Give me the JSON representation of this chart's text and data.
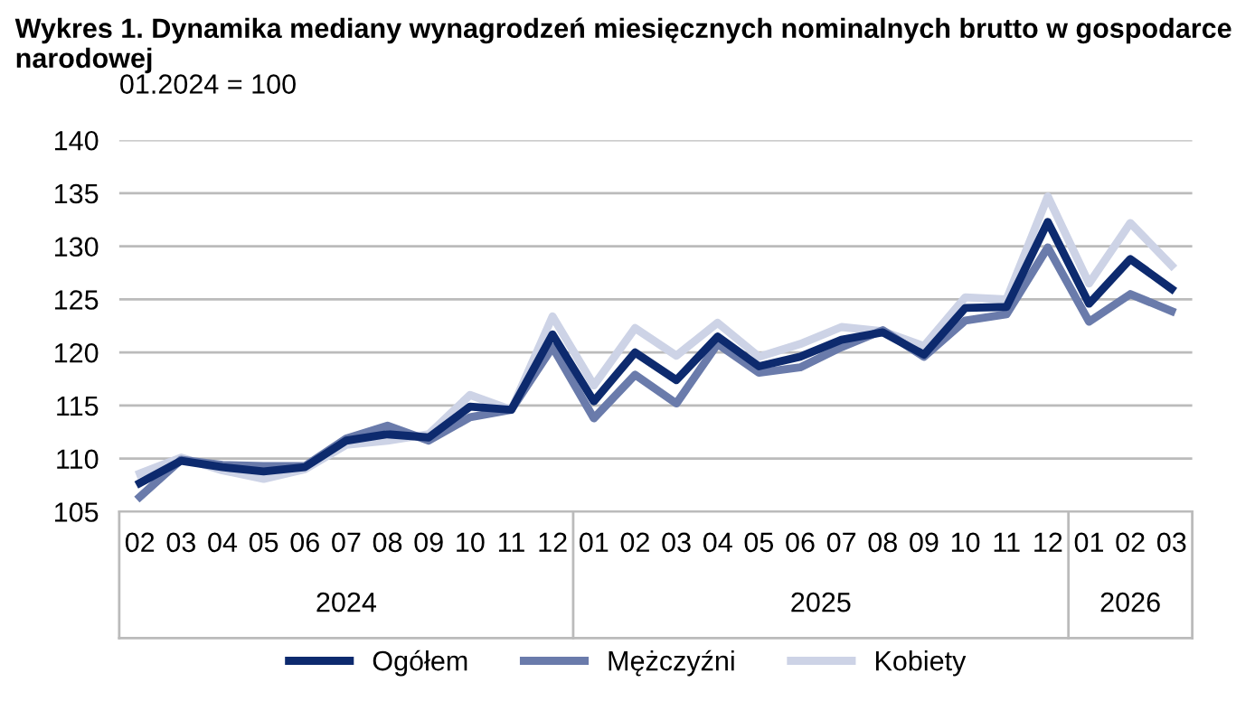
{
  "chart_data": {
    "type": "line",
    "title": "Wykres 1. Dynamika mediany wynagrodzeń miesięcznych nominalnych brutto w gospodarce narodowej",
    "subtitle": "01.2024 = 100",
    "categories": [
      "02",
      "03",
      "04",
      "05",
      "06",
      "07",
      "08",
      "09",
      "10",
      "11",
      "12",
      "01",
      "02",
      "03",
      "04",
      "05",
      "06",
      "07",
      "08",
      "09",
      "10",
      "11",
      "12",
      "01",
      "02",
      "03"
    ],
    "annotations": [
      "2024",
      "2025",
      "2026"
    ],
    "series": [
      {
        "name": "Ogółem",
        "color": "#0d2a6e",
        "values": [
          107.7,
          109.8,
          109.2,
          108.8,
          109.2,
          111.7,
          112.3,
          112.0,
          114.9,
          114.6,
          121.7,
          115.4,
          120.0,
          117.4,
          121.5,
          118.7,
          119.6,
          121.2,
          121.9,
          119.8,
          124.2,
          124.3,
          132.3,
          124.6,
          128.8,
          126.0
        ]
      },
      {
        "name": "Mężczyźni",
        "color": "#6a7bab",
        "values": [
          106.4,
          109.9,
          109.4,
          109.3,
          109.3,
          111.9,
          113.1,
          111.7,
          113.9,
          114.6,
          120.5,
          113.8,
          117.9,
          115.2,
          120.8,
          118.1,
          118.6,
          120.5,
          122.1,
          119.6,
          123.0,
          123.6,
          129.9,
          122.9,
          125.5,
          123.9
        ]
      },
      {
        "name": "Kobiety",
        "color": "#cdd3e6",
        "values": [
          108.6,
          110.1,
          108.9,
          108.1,
          109.0,
          111.3,
          111.7,
          112.3,
          116.0,
          114.6,
          123.4,
          116.9,
          122.3,
          119.7,
          122.8,
          119.6,
          120.8,
          122.4,
          122.0,
          120.6,
          125.2,
          125.0,
          134.7,
          126.5,
          132.2,
          128.2
        ]
      }
    ],
    "ylim": [
      105,
      140
    ],
    "yticks": [
      105,
      110,
      115,
      120,
      125,
      130,
      135,
      140
    ],
    "grid": "y",
    "legend": "bottom",
    "line_style": "solid",
    "marker": "none"
  }
}
